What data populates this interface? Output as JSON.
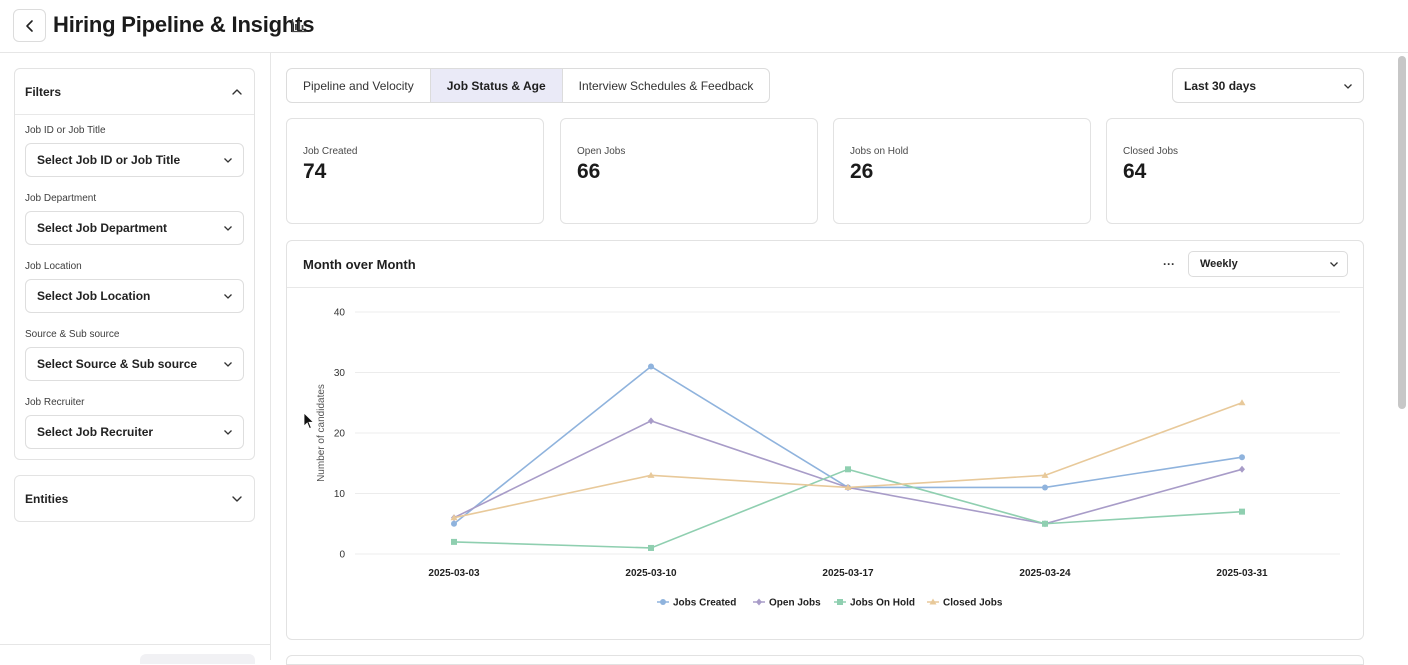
{
  "header": {
    "title": "Hiring Pipeline & Insights",
    "back_icon": "chevron-left-icon",
    "title_icon": "bar-chart-icon"
  },
  "sidebar": {
    "filters_title": "Filters",
    "filters": [
      {
        "label": "Job ID or Job Title",
        "placeholder": "Select Job ID or Job Title"
      },
      {
        "label": "Job Department",
        "placeholder": "Select Job Department"
      },
      {
        "label": "Job Location",
        "placeholder": "Select Job Location"
      },
      {
        "label": "Source & Sub source",
        "placeholder": "Select Source & Sub source"
      },
      {
        "label": "Job Recruiter",
        "placeholder": "Select Job Recruiter"
      }
    ],
    "entities_title": "Entities"
  },
  "tabs": [
    {
      "label": "Pipeline and Velocity",
      "active": false
    },
    {
      "label": "Job Status & Age",
      "active": true
    },
    {
      "label": "Interview Schedules & Feedback",
      "active": false
    }
  ],
  "date_range": {
    "selected": "Last 30 days"
  },
  "kpis": [
    {
      "label": "Job Created",
      "value": "74"
    },
    {
      "label": "Open Jobs",
      "value": "66"
    },
    {
      "label": "Jobs on Hold",
      "value": "26"
    },
    {
      "label": "Closed Jobs",
      "value": "64"
    }
  ],
  "chart_card": {
    "title": "Month over Month",
    "period": "Weekly"
  },
  "chart_data": {
    "type": "line",
    "title": "Month over Month",
    "ylabel": "Number of candidates",
    "xlabel": "",
    "x": [
      "2025-03-03",
      "2025-03-10",
      "2025-03-17",
      "2025-03-24",
      "2025-03-31"
    ],
    "ylim": [
      0,
      40
    ],
    "yticks": [
      0,
      10,
      20,
      30,
      40
    ],
    "grid": true,
    "legend": "bottom",
    "series": [
      {
        "name": "Jobs Created",
        "values": [
          5,
          31,
          11,
          11,
          16
        ],
        "color": "#8fb3dd",
        "marker": "circle"
      },
      {
        "name": "Open Jobs",
        "values": [
          6,
          22,
          11,
          5,
          14
        ],
        "color": "#a89cc8",
        "marker": "diamond"
      },
      {
        "name": "Jobs On Hold",
        "values": [
          2,
          1,
          14,
          5,
          7
        ],
        "color": "#8fcfb0",
        "marker": "square"
      },
      {
        "name": "Closed Jobs",
        "values": [
          6,
          13,
          11,
          13,
          25
        ],
        "color": "#e8c99a",
        "marker": "triangle"
      }
    ]
  }
}
